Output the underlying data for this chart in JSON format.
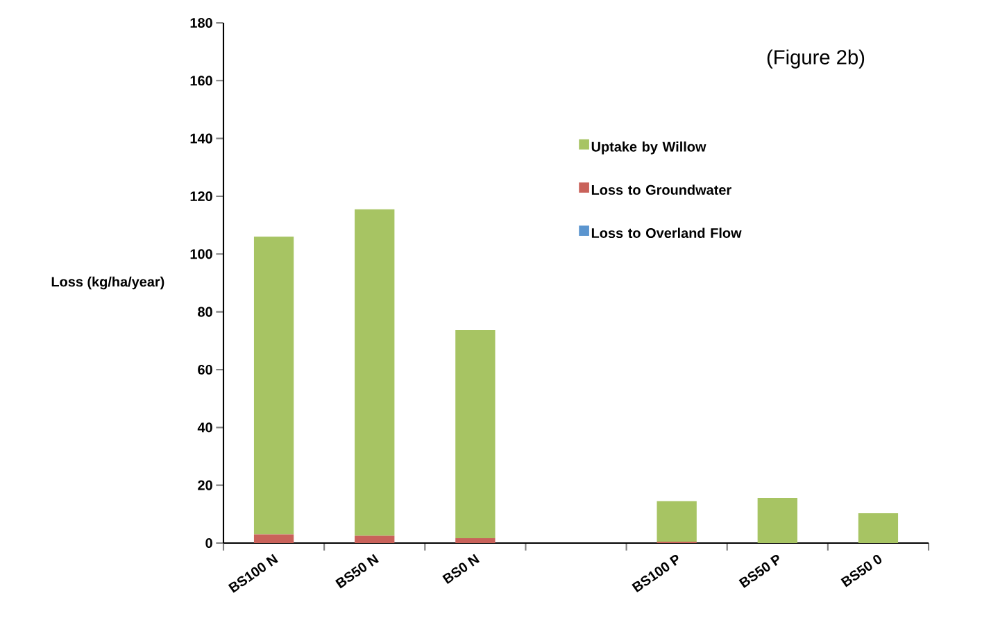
{
  "chart_data": {
    "type": "bar",
    "stacked": true,
    "ylabel": "Loss (kg/ha/year)",
    "annotations": [
      "(Figure 2b)"
    ],
    "categories": [
      "BS100 N",
      "BS50 N",
      "BS0 N",
      null,
      "BS100 P",
      "BS50 P",
      "BS50 0"
    ],
    "ylim": [
      0,
      180
    ],
    "yticks": [
      0,
      20,
      40,
      60,
      80,
      100,
      120,
      140,
      160,
      180
    ],
    "legend": "top right",
    "grid": false,
    "series": [
      {
        "name": "Loss to Groundwater",
        "color": "#c9625a",
        "values": [
          3,
          2.5,
          1.7,
          null,
          0.5,
          0,
          0
        ]
      },
      {
        "name": "Loss to Overland Flow",
        "color": "#5b95cf",
        "values": [
          0,
          0,
          0,
          null,
          0,
          0,
          0
        ]
      },
      {
        "name": "Uptake by Willow",
        "color": "#a7c463",
        "values": [
          103,
          113,
          72,
          null,
          14,
          15.6,
          10.3
        ]
      }
    ]
  }
}
